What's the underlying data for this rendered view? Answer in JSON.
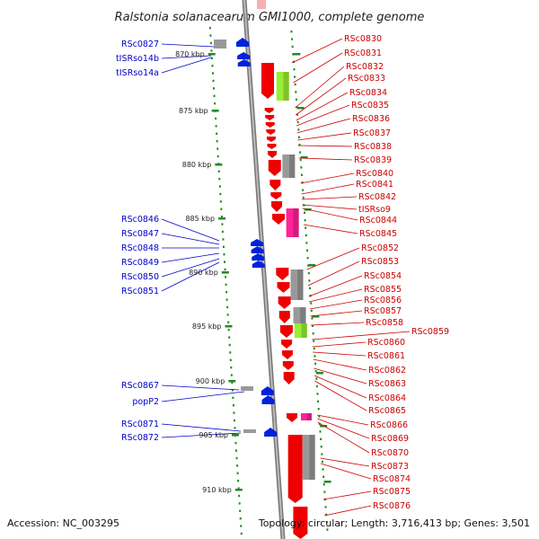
{
  "title": "Ralstonia solanacearum GMI1000, complete genome",
  "footer": {
    "accession": "Accession: NC_003295",
    "summary": "Topology: circular; Length: 3,716,413 bp; Genes: 3,501"
  },
  "colors": {
    "left_label": "#0000cc",
    "right_label": "#cc0000",
    "tick": "#228b22",
    "gene_red": "#ee0000",
    "gene_blue": "#0022dd",
    "gene_grey": "#999999",
    "gene_green": "#99ee33",
    "gene_pink": "#ff2299",
    "backbone": "#888888"
  },
  "kbp_marks": [
    "870 kbp",
    "875 kbp",
    "880 kbp",
    "885 kbp",
    "890 kbp",
    "895 kbp",
    "900 kbp",
    "905 kbp",
    "910 kbp"
  ],
  "left_labels": [
    "RSc0827",
    "tISRso14b",
    "tISRso14a",
    "RSc0846",
    "RSc0847",
    "RSc0848",
    "RSc0849",
    "RSc0850",
    "RSc0851",
    "RSc0867",
    "popP2",
    "RSc0871",
    "RSc0872"
  ],
  "right_labels": [
    "RSc0830",
    "RSc0831",
    "RSc0832",
    "RSc0833",
    "RSc0834",
    "RSc0835",
    "RSc0836",
    "RSc0837",
    "RSc0838",
    "RSc0839",
    "RSc0840",
    "RSc0841",
    "RSc0842",
    "tISRso9",
    "RSc0844",
    "RSc0845",
    "RSc0852",
    "RSc0853",
    "RSc0854",
    "RSc0855",
    "RSc0856",
    "RSc0857",
    "RSc0858",
    "RSc0859",
    "RSc0860",
    "RSc0861",
    "RSc0862",
    "RSc0863",
    "RSc0864",
    "RSc0865",
    "RSc0866",
    "RSc0869",
    "RSc0870",
    "RSc0873",
    "RSc0874",
    "RSc0875",
    "RSc0876"
  ]
}
